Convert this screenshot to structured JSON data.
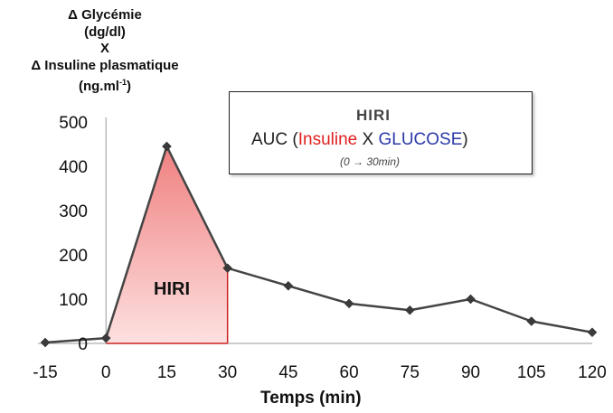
{
  "y_title": {
    "line1": "Δ Glycémie",
    "line2": "(dg/dl)",
    "line3": "X",
    "line4": "Δ Insuline plasmatique",
    "line5_unit": "(ng.ml",
    "line5_exp": "-1",
    "line5_close": ")"
  },
  "legend": {
    "title": "HIRI",
    "formula_prefix": "AUC (",
    "formula_insulin": "Insuline",
    "formula_x": " X ",
    "formula_glucose": "GLUCOSE",
    "formula_suffix": ")",
    "subtitle": "(0 → 30min)"
  },
  "area_label": "HIRI",
  "x_title": "Temps (min)",
  "colors": {
    "line": "#444444",
    "marker": "#3a3a3a",
    "area_fill_top": "#f08080",
    "area_fill_bottom": "#fde0e0",
    "area_edge": "#cc2222",
    "insulin": "#e02020",
    "glucose": "#2a3aa8"
  },
  "chart_data": {
    "type": "line",
    "x": [
      -15,
      0,
      15,
      30,
      45,
      60,
      75,
      90,
      105,
      120
    ],
    "y": [
      2,
      12,
      445,
      170,
      130,
      90,
      75,
      100,
      50,
      25
    ],
    "xlim": [
      -15,
      120
    ],
    "ylim": [
      0,
      500
    ],
    "xticks": [
      "-15",
      "0",
      "15",
      "30",
      "45",
      "60",
      "75",
      "90",
      "105",
      "120"
    ],
    "yticks": [
      "0",
      "100",
      "200",
      "300",
      "400",
      "500"
    ],
    "shaded_area": {
      "from": 0,
      "to": 30,
      "label": "HIRI"
    },
    "grid": false,
    "xlabel": "Temps (min)",
    "ylabel": "Δ Glycémie (dg/dl) X Δ Insuline plasmatique (ng.ml-1)"
  }
}
